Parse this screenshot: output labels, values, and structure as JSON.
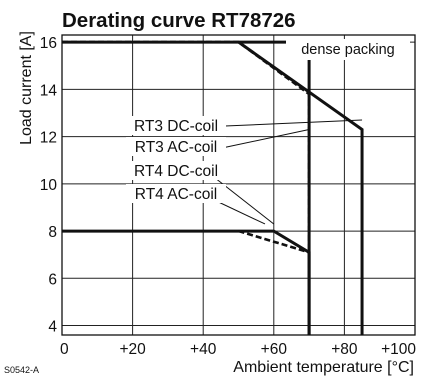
{
  "chart_data": {
    "type": "line",
    "title": "Derating curve RT78726",
    "xlabel": "Ambient temperature [°C]",
    "ylabel": "Load current [A]",
    "xlim": [
      0,
      100
    ],
    "ylim": [
      3.6,
      16.3
    ],
    "x_ticks": [
      0,
      20,
      40,
      60,
      80,
      100
    ],
    "x_tick_labels": [
      "0",
      "+20",
      "+40",
      "+60",
      "+80",
      "+100"
    ],
    "y_ticks": [
      4,
      6,
      8,
      10,
      12,
      14,
      16
    ],
    "y_tick_labels": [
      "4",
      "6",
      "8",
      "10",
      "12",
      "14",
      "16"
    ],
    "grid": true,
    "legend": "callout labels",
    "legend_entries": [
      "RT3 DC-coil",
      "RT3 AC-coil",
      "RT4 DC-coil",
      "RT4 AC-coil"
    ],
    "annotation": "dense packing",
    "figure_code": "S0542-A",
    "series": [
      {
        "x": [
          0,
          70,
          70
        ],
        "y": [
          16,
          16,
          3.6
        ],
        "style": "solid"
      },
      {
        "x": [
          0,
          50,
          70,
          70
        ],
        "y": [
          16,
          16,
          13.8,
          3.6
        ],
        "style": "dashed"
      },
      {
        "x": [
          50,
          85,
          85
        ],
        "y": [
          16,
          12.3,
          3.6
        ],
        "style": "solid"
      },
      {
        "x": [
          0,
          60,
          70,
          70
        ],
        "y": [
          8,
          8,
          7.1,
          3.6
        ],
        "style": "solid"
      },
      {
        "x": [
          50,
          70
        ],
        "y": [
          8,
          7.1
        ],
        "style": "dashed"
      }
    ],
    "colors": {
      "curve": "#111111",
      "grid": "#222222"
    }
  }
}
